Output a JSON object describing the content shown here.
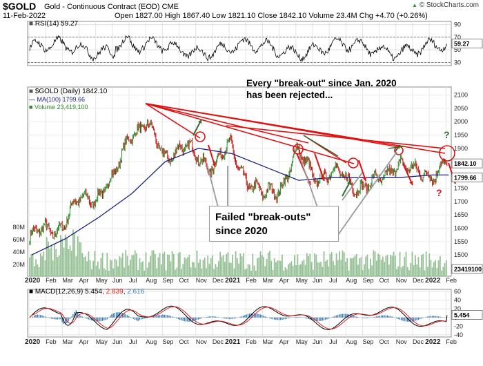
{
  "header": {
    "symbol": "$GOLD",
    "name": "Gold - Continuous Contract (EOD)  CME",
    "date": "11-Feb-2022",
    "quote": "Open 1827.00  High 1867.40  Low 1821.10  Close 1842.10  Volume 23.4M  Chg +4.70 (+0.26%)",
    "credit": "© StockCharts.com",
    "credit_icon": "up-arrow-icon",
    "status_up": "▲"
  },
  "annotations": {
    "top_note_line1": "Every \"break-out\" since Jan. 2020",
    "top_note_line2": "has been rejected...",
    "box_line1": "Failed \"break-outs\"",
    "box_line2": "since 2020",
    "question_mark": "?"
  },
  "colors": {
    "price_up": "#2a8a2a",
    "price_down": "#cc1111",
    "ma": "#1a237e",
    "volume": "#96c196",
    "rsi": "#000000",
    "macd": "#000000",
    "macd_signal": "#e02020",
    "histogram": "#3a7bb0",
    "trendline": "#e01010",
    "up_arrow": "#2e6e2e",
    "down_arrow": "#e01010"
  },
  "chart_data": [
    {
      "type": "line",
      "title": "RSI(14) 59.27",
      "series": [
        {
          "name": "RSI(14)",
          "last": 59.27
        }
      ],
      "y_ticks": [
        30,
        50,
        70,
        90
      ],
      "ylim": [
        25,
        95
      ],
      "reference_lines": [
        30,
        70
      ],
      "grid": true
    },
    {
      "type": "line",
      "title": "$GOLD (Daily) 1842.10",
      "series": [
        {
          "name": "$GOLD (Daily) 1842.10",
          "last": 1842.1,
          "x": [
            "2020-01",
            "2020-02",
            "2020-03",
            "2020-04",
            "2020-05",
            "2020-06",
            "2020-07",
            "2020-08",
            "2020-09",
            "2020-10",
            "2020-11",
            "2020-12",
            "2021-01",
            "2021-02",
            "2021-03",
            "2021-04",
            "2021-05",
            "2021-06",
            "2021-07",
            "2021-08",
            "2021-09",
            "2021-10",
            "2021-11",
            "2021-12",
            "2022-01",
            "2022-02"
          ],
          "values": [
            1560,
            1590,
            1620,
            1700,
            1730,
            1770,
            1970,
            1980,
            1880,
            1900,
            1870,
            1840,
            1900,
            1790,
            1710,
            1760,
            1880,
            1800,
            1810,
            1780,
            1760,
            1770,
            1860,
            1800,
            1810,
            1842
          ]
        },
        {
          "name": "MA(100) 1799.66",
          "last": 1799.66,
          "x": [
            "2020-01",
            "2020-03",
            "2020-05",
            "2020-07",
            "2020-09",
            "2020-11",
            "2021-01",
            "2021-03",
            "2021-05",
            "2021-07",
            "2021-09",
            "2021-11",
            "2022-01",
            "2022-02"
          ],
          "values": [
            1500,
            1560,
            1640,
            1730,
            1850,
            1900,
            1880,
            1830,
            1780,
            1790,
            1790,
            1790,
            1800,
            1800
          ]
        },
        {
          "name": "Volume 23,419,100",
          "last": 23419100
        }
      ],
      "y_ticks": [
        1450,
        1500,
        1550,
        1600,
        1650,
        1700,
        1750,
        1800,
        1850,
        1900,
        1950,
        2000,
        2050,
        2100
      ],
      "ylim": [
        1420,
        2130
      ],
      "volume_ticks": [
        "20M",
        "40M",
        "60M",
        "80M"
      ],
      "volume_last": "23419100",
      "price_last_label": "1842.10",
      "ma_last_label": "1799.66",
      "x_labels": [
        "2020",
        "Feb",
        "Mar",
        "Apr",
        "May",
        "Jun",
        "Jul",
        "Aug",
        "Sep",
        "Oct",
        "Nov",
        "Dec",
        "2021",
        "Feb",
        "Mar",
        "Apr",
        "May",
        "Jun",
        "Jul",
        "Aug",
        "Sep",
        "Oct",
        "Nov",
        "Dec",
        "2022",
        "Feb"
      ],
      "grid": true
    },
    {
      "type": "line",
      "title": "MACD(12,26,9) 5.454, 2.839, 2.616",
      "series": [
        {
          "name": "MACD",
          "last": 5.454
        },
        {
          "name": "Signal",
          "last": 2.839
        },
        {
          "name": "Histogram",
          "last": 2.616
        }
      ],
      "y_ticks": [
        -40,
        -20,
        0,
        20,
        40,
        60
      ],
      "ylim": [
        -45,
        65
      ],
      "last_label": "5.454",
      "grid": true
    }
  ]
}
